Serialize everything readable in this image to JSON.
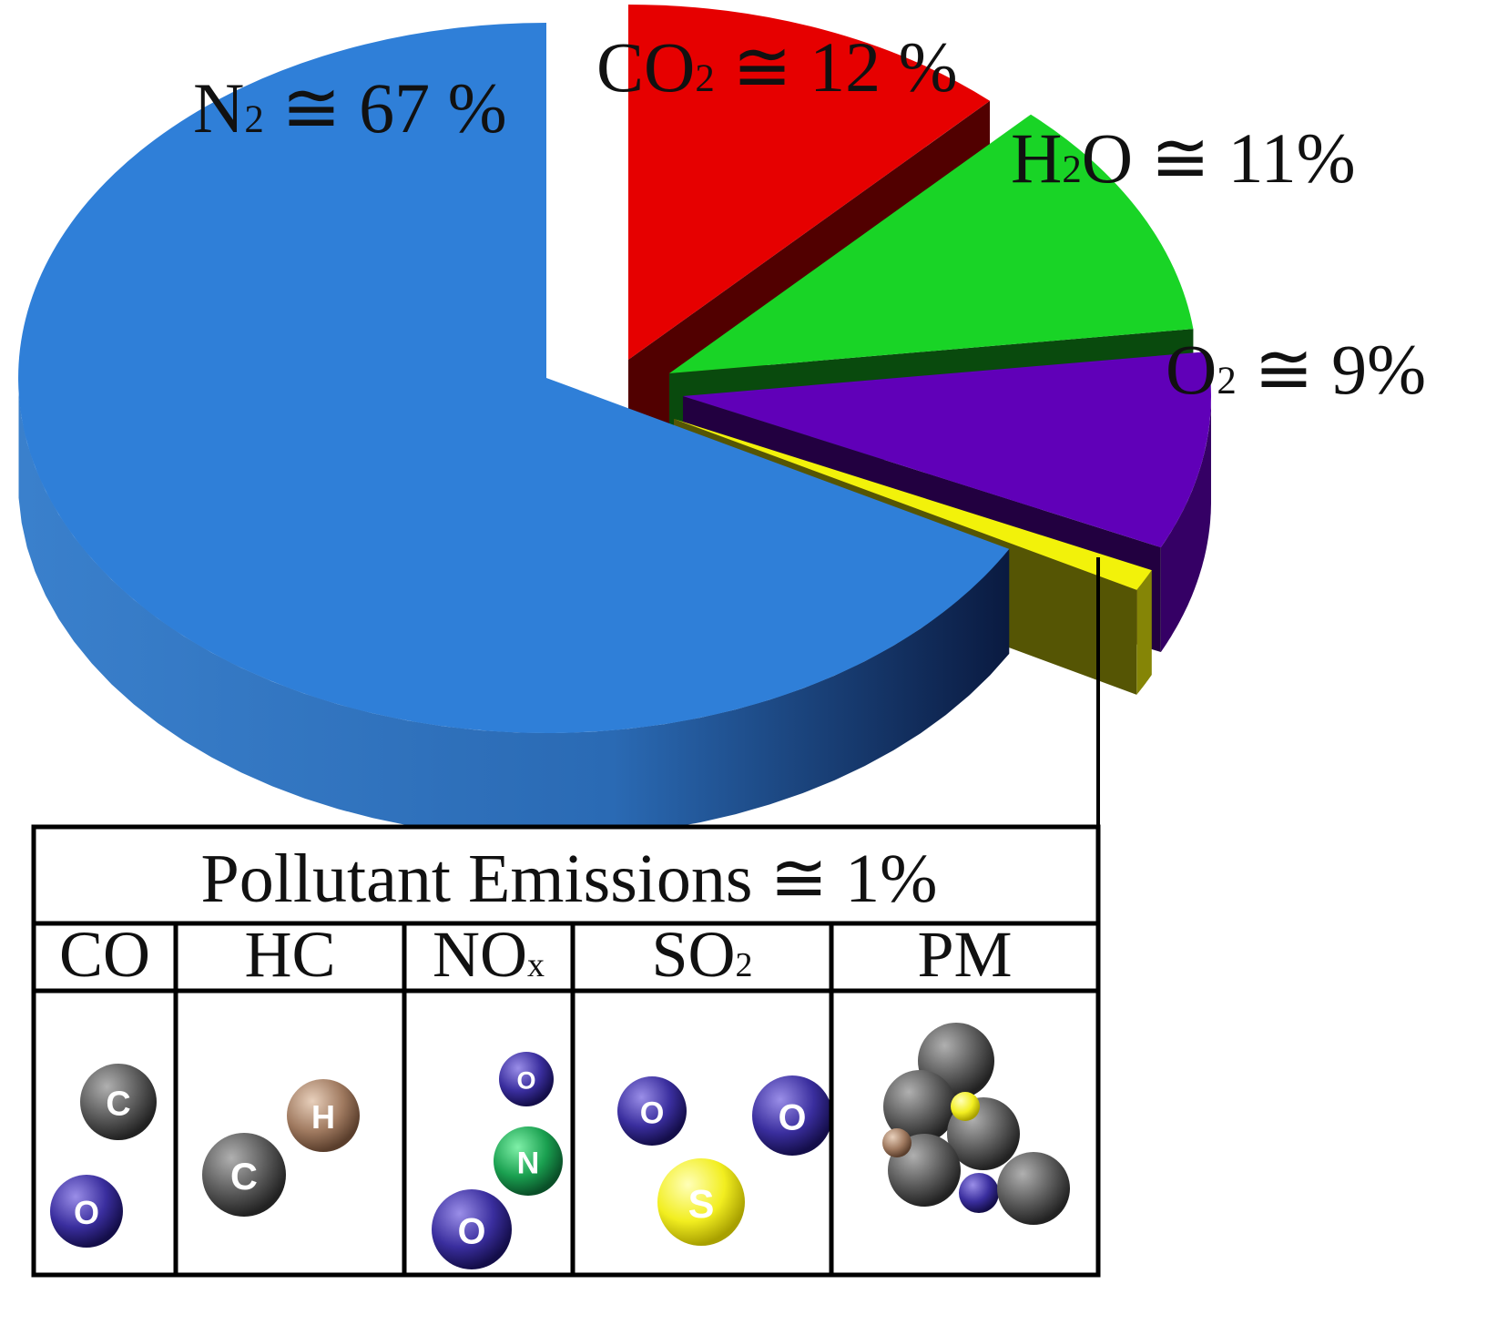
{
  "chart_data": {
    "type": "pie",
    "style": "3d-exploded",
    "title": "",
    "slices": [
      {
        "formula": "N",
        "sub": "2",
        "label_suffix": " ≅ 67 %",
        "value": 67,
        "color": "#2f7fd8"
      },
      {
        "formula": "CO",
        "sub": "2",
        "label_suffix": " ≅ 12 %",
        "value": 12,
        "color": "#e60000"
      },
      {
        "formula": "H",
        "sub": "2",
        "formula_tail": "O",
        "label_suffix": " ≅ 11%",
        "value": 11,
        "color": "#19d426"
      },
      {
        "formula": "O",
        "sub": "2",
        "label_suffix": " ≅ 9%",
        "value": 9,
        "color": "#6000b8"
      },
      {
        "formula": "",
        "sub": "",
        "label_suffix": "",
        "value": 1,
        "color": "#f2f20a"
      }
    ],
    "legend": "none"
  },
  "pollutant_table": {
    "header": "Pollutant Emissions ≅ 1%",
    "columns": [
      {
        "name": "CO",
        "sub": "",
        "atoms": [
          "C",
          "O"
        ]
      },
      {
        "name": "HC",
        "sub": "",
        "atoms": [
          "H",
          "C"
        ]
      },
      {
        "name": "NO",
        "sub": "x",
        "atoms": [
          "O",
          "N",
          "O"
        ]
      },
      {
        "name": "SO",
        "sub": "2",
        "atoms": [
          "O",
          "O",
          "S"
        ]
      },
      {
        "name": "PM",
        "sub": "",
        "atoms": []
      }
    ]
  },
  "colors": {
    "carbon": "#555555",
    "oxygen": "#3a2e9e",
    "hydrogen": "#a07a60",
    "nitrogen": "#1aa050",
    "sulfur": "#f2ee20"
  }
}
